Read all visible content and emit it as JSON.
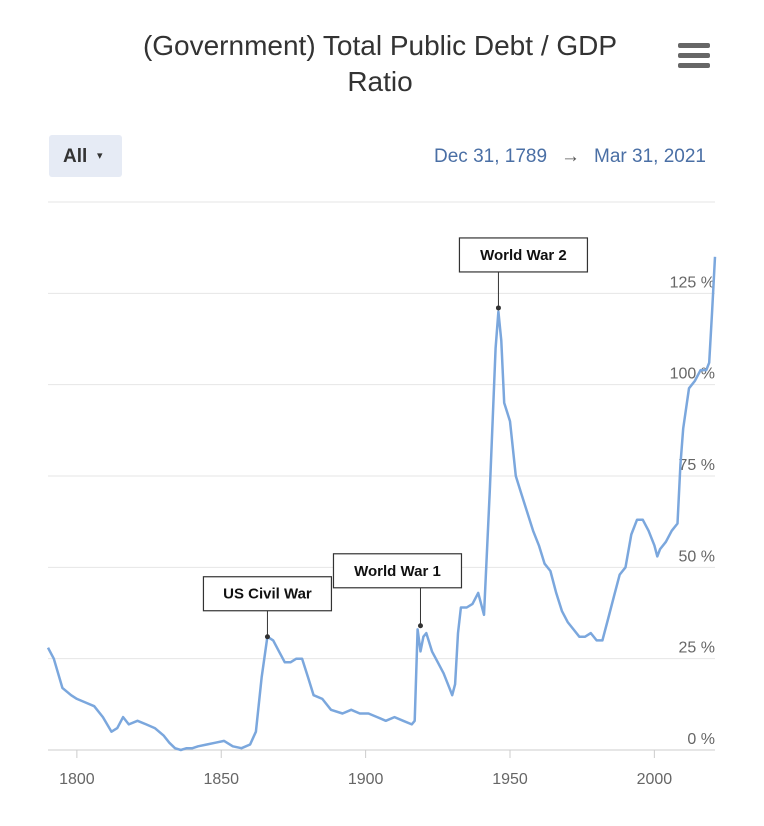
{
  "header": {
    "title_line1": "(Government) Total Public Debt / GDP",
    "title_line2": "Ratio",
    "menu_icon": "hamburger-menu-icon"
  },
  "range_selector": {
    "label": "All",
    "caret": "▾",
    "start_date": "Dec 31, 1789",
    "arrow": "→",
    "end_date": "Mar 31, 2021"
  },
  "colors": {
    "line": "#7ba7dd",
    "grid": "#e6e6e6",
    "axis_text": "#666666",
    "date_text": "#4a6fa5"
  },
  "chart_data": {
    "type": "line",
    "title": "(Government) Total Public Debt / GDP Ratio",
    "xlim": [
      1790,
      2021
    ],
    "ylim": [
      0,
      150
    ],
    "y_ticks": [
      {
        "value": 0,
        "label": "0 %"
      },
      {
        "value": 25,
        "label": "25 %"
      },
      {
        "value": 50,
        "label": "50 %"
      },
      {
        "value": 75,
        "label": "75 %"
      },
      {
        "value": 100,
        "label": "100 %"
      },
      {
        "value": 125,
        "label": "125 %"
      }
    ],
    "x_ticks": [
      {
        "value": 1800,
        "label": "1800"
      },
      {
        "value": 1850,
        "label": "1850"
      },
      {
        "value": 1900,
        "label": "1900"
      },
      {
        "value": 1950,
        "label": "1950"
      },
      {
        "value": 2000,
        "label": "2000"
      }
    ],
    "grid": true,
    "series": [
      {
        "points": [
          [
            1790,
            28
          ],
          [
            1792,
            25
          ],
          [
            1795,
            17
          ],
          [
            1798,
            15
          ],
          [
            1800,
            14
          ],
          [
            1803,
            13
          ],
          [
            1806,
            12
          ],
          [
            1809,
            9
          ],
          [
            1812,
            5
          ],
          [
            1814,
            6
          ],
          [
            1816,
            9
          ],
          [
            1818,
            7
          ],
          [
            1821,
            8
          ],
          [
            1824,
            7
          ],
          [
            1827,
            6
          ],
          [
            1830,
            4
          ],
          [
            1832,
            2
          ],
          [
            1834,
            0.5
          ],
          [
            1836,
            0
          ],
          [
            1838,
            0.5
          ],
          [
            1840,
            0.5
          ],
          [
            1842,
            1
          ],
          [
            1845,
            1.5
          ],
          [
            1848,
            2
          ],
          [
            1851,
            2.5
          ],
          [
            1854,
            1
          ],
          [
            1857,
            0.5
          ],
          [
            1860,
            1.5
          ],
          [
            1862,
            5
          ],
          [
            1864,
            20
          ],
          [
            1866,
            31
          ],
          [
            1868,
            30
          ],
          [
            1870,
            27
          ],
          [
            1872,
            24
          ],
          [
            1874,
            24
          ],
          [
            1876,
            25
          ],
          [
            1878,
            25
          ],
          [
            1880,
            20
          ],
          [
            1882,
            15
          ],
          [
            1885,
            14
          ],
          [
            1888,
            11
          ],
          [
            1892,
            10
          ],
          [
            1895,
            11
          ],
          [
            1898,
            10
          ],
          [
            1901,
            10
          ],
          [
            1904,
            9
          ],
          [
            1907,
            8
          ],
          [
            1910,
            9
          ],
          [
            1913,
            8
          ],
          [
            1916,
            7
          ],
          [
            1917,
            8
          ],
          [
            1918,
            33
          ],
          [
            1919,
            27
          ],
          [
            1920,
            31
          ],
          [
            1921,
            32
          ],
          [
            1923,
            27
          ],
          [
            1925,
            24
          ],
          [
            1927,
            21
          ],
          [
            1929,
            17
          ],
          [
            1930,
            15
          ],
          [
            1931,
            18
          ],
          [
            1932,
            32
          ],
          [
            1933,
            39
          ],
          [
            1935,
            39
          ],
          [
            1937,
            40
          ],
          [
            1939,
            43
          ],
          [
            1941,
            37
          ],
          [
            1943,
            71
          ],
          [
            1945,
            110
          ],
          [
            1946,
            120
          ],
          [
            1947,
            112
          ],
          [
            1948,
            95
          ],
          [
            1950,
            90
          ],
          [
            1952,
            75
          ],
          [
            1954,
            70
          ],
          [
            1956,
            65
          ],
          [
            1958,
            60
          ],
          [
            1960,
            56
          ],
          [
            1962,
            51
          ],
          [
            1964,
            49
          ],
          [
            1966,
            43
          ],
          [
            1968,
            38
          ],
          [
            1970,
            35
          ],
          [
            1972,
            33
          ],
          [
            1974,
            31
          ],
          [
            1976,
            31
          ],
          [
            1978,
            32
          ],
          [
            1980,
            30
          ],
          [
            1982,
            30
          ],
          [
            1984,
            36
          ],
          [
            1986,
            42
          ],
          [
            1988,
            48
          ],
          [
            1990,
            50
          ],
          [
            1992,
            59
          ],
          [
            1994,
            63
          ],
          [
            1996,
            63
          ],
          [
            1998,
            60
          ],
          [
            2000,
            56
          ],
          [
            2001,
            53
          ],
          [
            2002,
            55
          ],
          [
            2004,
            57
          ],
          [
            2006,
            60
          ],
          [
            2008,
            62
          ],
          [
            2009,
            78
          ],
          [
            2010,
            88
          ],
          [
            2012,
            99
          ],
          [
            2014,
            101
          ],
          [
            2016,
            104
          ],
          [
            2018,
            104
          ],
          [
            2019,
            106
          ],
          [
            2020,
            120
          ],
          [
            2021,
            135
          ]
        ]
      }
    ],
    "annotations": [
      {
        "text": "US Civil War",
        "x": 1866,
        "y": 31
      },
      {
        "text": "World War 1",
        "x": 1919,
        "y": 34
      },
      {
        "text": "World War 2",
        "x": 1946,
        "y": 121
      }
    ]
  }
}
